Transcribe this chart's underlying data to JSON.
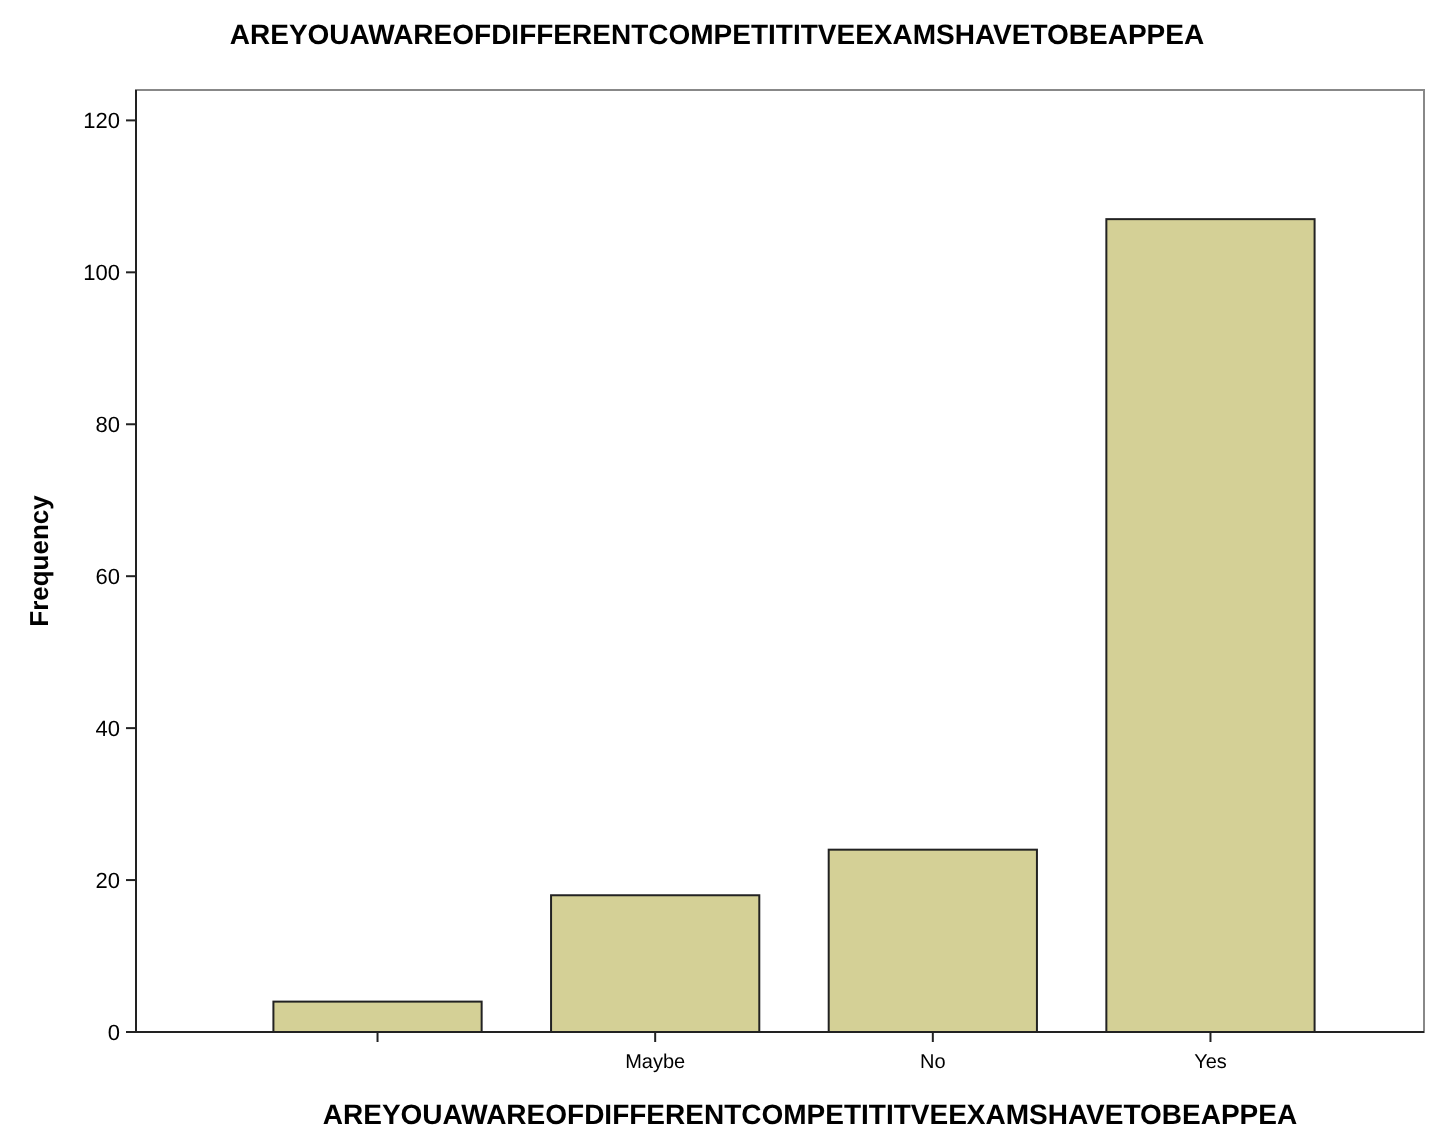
{
  "chart_data": {
    "type": "bar",
    "title": "AREYOUAWAREOFDIFFERENTCOMPETITITVEEXAMSHAVETOBEAPPEA",
    "xlabel": "AREYOUAWAREOFDIFFERENTCOMPETITITVEEXAMSHAVETOBEAPPEA",
    "ylabel": "Frequency",
    "categories": [
      null,
      "Maybe",
      "No",
      "Yes"
    ],
    "values": [
      4,
      18,
      24,
      107
    ],
    "color": "#d4d096",
    "ylim": [
      0,
      124
    ],
    "yticks": [
      0,
      20,
      40,
      60,
      80,
      100,
      120
    ]
  }
}
